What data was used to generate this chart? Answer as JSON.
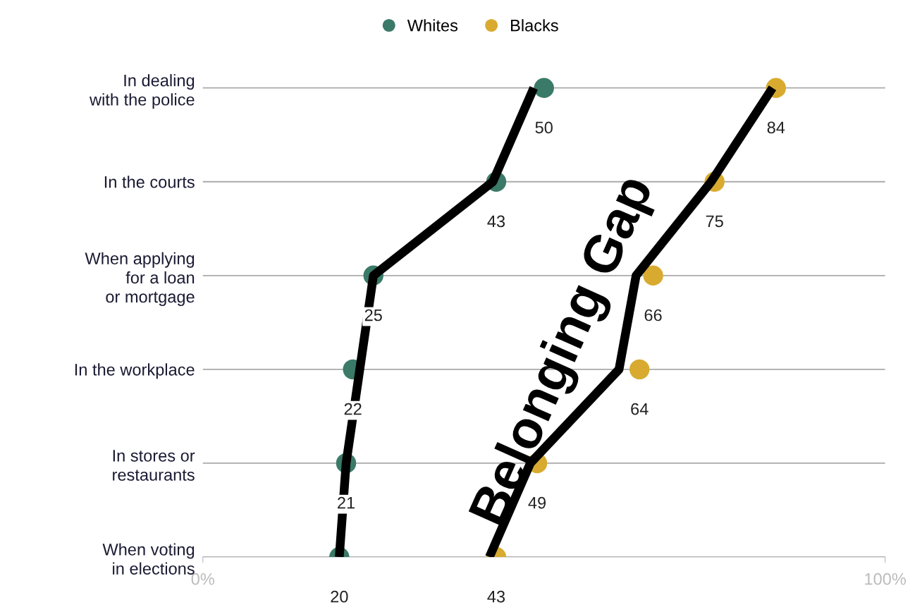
{
  "chart_data": {
    "type": "scatter",
    "orientation": "horizontal",
    "categories": [
      "In dealing\nwith the police",
      "In the courts",
      "When applying\nfor a loan\nor mortgage",
      "In the workplace",
      "In stores or\nrestaurants",
      "When voting\nin elections"
    ],
    "series": [
      {
        "name": "Whites",
        "marker": "circle",
        "color": "#3b7a68",
        "values": [
          50,
          43,
          25,
          22,
          21,
          20
        ],
        "value_labels": [
          "50",
          "43",
          "25",
          "22",
          "21",
          "20"
        ]
      },
      {
        "name": "Blacks",
        "marker": "circle",
        "color": "#d8ab30",
        "values": [
          84,
          75,
          66,
          64,
          49,
          43
        ],
        "value_labels": [
          "84",
          "75",
          "66",
          "64",
          "49",
          "43"
        ]
      },
      {
        "type": "line",
        "color": "#000000",
        "values": [
          48.5,
          42.5,
          25,
          23,
          21,
          20
        ]
      },
      {
        "type": "line",
        "color": "#000000",
        "values": [
          83.5,
          74.5,
          63.5,
          61,
          48,
          42
        ]
      }
    ],
    "xlim": [
      0,
      100
    ],
    "xticks": [
      {
        "value": 0,
        "label": "0%"
      },
      {
        "value": 100,
        "label": "100%"
      }
    ],
    "grid": "y",
    "legend": "top",
    "annotations": [
      "Belonging Gap"
    ]
  }
}
